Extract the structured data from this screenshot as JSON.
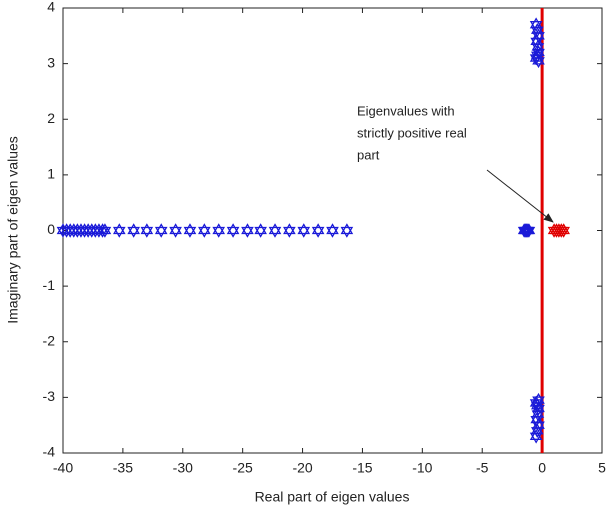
{
  "chart_data": {
    "type": "scatter",
    "xlabel": "Real part of eigen values",
    "ylabel": "Imaginary part of eigen values",
    "xlim": [
      -40,
      5
    ],
    "ylim": [
      -4,
      4
    ],
    "xticks": [
      -40,
      -35,
      -30,
      -25,
      -20,
      -15,
      -10,
      -5,
      0,
      5
    ],
    "yticks": [
      -4,
      -3,
      -2,
      -1,
      0,
      1,
      2,
      3,
      4
    ],
    "vline": {
      "x": 0,
      "color": "#e00000"
    },
    "annotation": {
      "lines": [
        "Eigenvalues with",
        "strictly positive real",
        "part"
      ]
    },
    "series": [
      {
        "color": "#1a1ad8",
        "x": [
          -40,
          -39.7,
          -39.4,
          -39.1,
          -38.8,
          -38.5,
          -38.2,
          -37.9,
          -37.6,
          -37.3,
          -37.0,
          -36.7,
          -36.5,
          -35.3,
          -34.1,
          -33.0,
          -31.8,
          -30.6,
          -29.4,
          -28.2,
          -27.0,
          -25.8,
          -24.6,
          -23.5,
          -22.3,
          -21.1,
          -19.9,
          -18.7,
          -17.5,
          -16.3,
          -1.5,
          -1.4,
          -1.3,
          -1.2,
          -1.1,
          -0.5,
          -0.4,
          -0.3,
          -0.45,
          -0.35,
          -0.3,
          -0.4,
          -0.5,
          -0.3,
          -0.5,
          -0.4,
          -0.3,
          -0.45,
          -0.35,
          -0.3,
          -0.4,
          -0.5,
          -0.3
        ],
        "values": [
          0,
          0,
          0,
          0,
          0,
          0,
          0,
          0,
          0,
          0,
          0,
          0,
          0,
          0,
          0,
          0,
          0,
          0,
          0,
          0,
          0,
          0,
          0,
          0,
          0,
          0,
          0,
          0,
          0,
          0,
          0,
          0,
          0,
          0,
          0,
          3.7,
          3.6,
          3.5,
          3.4,
          3.3,
          3.2,
          3.15,
          3.1,
          3.05,
          -3.7,
          -3.6,
          -3.5,
          -3.4,
          -3.3,
          -3.2,
          -3.15,
          -3.1,
          -3.05
        ]
      },
      {
        "color": "#e00000",
        "x": [
          1.0,
          1.2,
          1.4,
          1.6,
          1.8
        ],
        "values": [
          0,
          0,
          0,
          0,
          0
        ]
      }
    ]
  }
}
